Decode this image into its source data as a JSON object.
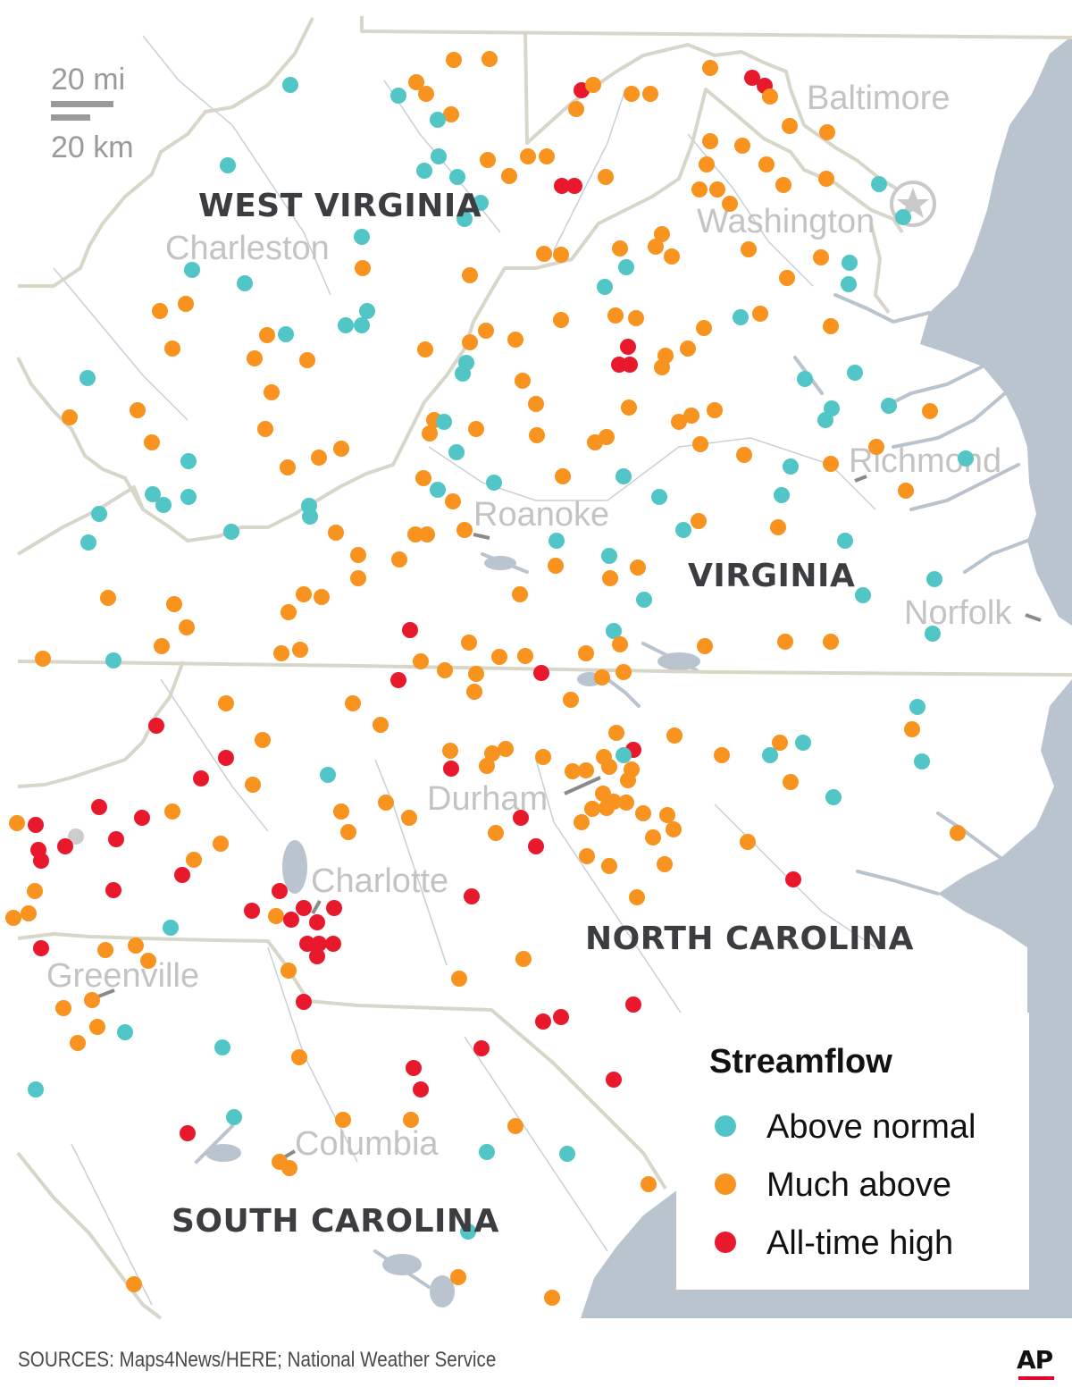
{
  "map": {
    "states": [
      "WEST VIRGINIA",
      "VIRGINIA",
      "NORTH CAROLINA",
      "SOUTH CAROLINA"
    ],
    "cities": [
      "Baltimore",
      "Washington",
      "Charleston",
      "Richmond",
      "Roanoke",
      "Norfolk",
      "Durham",
      "Charlotte",
      "Greenville",
      "Columbia"
    ],
    "scale": {
      "miles": "20 mi",
      "km": "20 km"
    }
  },
  "legend": {
    "title": "Streamflow",
    "items": [
      {
        "label": "Above normal",
        "color": "#52c6c6"
      },
      {
        "label": "Much above",
        "color": "#f7931e"
      },
      {
        "label": "All-time high",
        "color": "#e8192c"
      }
    ]
  },
  "colors": {
    "water": "#b9c4cf",
    "border": "#d8d6c8",
    "unknown": "#cccccc"
  },
  "footer": {
    "sources": "SOURCES: Maps4News/HERE;  National Weather Service",
    "logo": "AP"
  }
}
